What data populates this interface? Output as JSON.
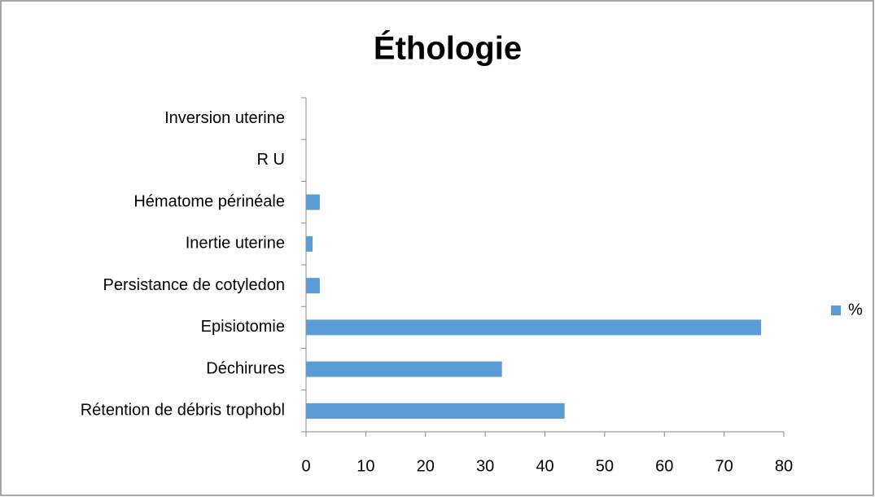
{
  "chart_data": {
    "type": "bar",
    "orientation": "horizontal",
    "title": "Éthologie",
    "categories": [
      "Rétention de débris trophobl",
      "Déchirures",
      "Episiotomie",
      "Persistance de cotyledon",
      "Inertie uterine",
      "Hématome périnéale",
      "R U",
      "Inversion uterine"
    ],
    "series": [
      {
        "name": "%",
        "color": "#5b9bd5",
        "values": [
          43.3,
          32.8,
          76.2,
          2.3,
          1.1,
          2.3,
          0,
          0
        ]
      }
    ],
    "xlim": [
      0,
      80
    ],
    "xticks": [
      0,
      10,
      20,
      30,
      40,
      50,
      60,
      70,
      80
    ],
    "grid": false,
    "legend": "right"
  }
}
